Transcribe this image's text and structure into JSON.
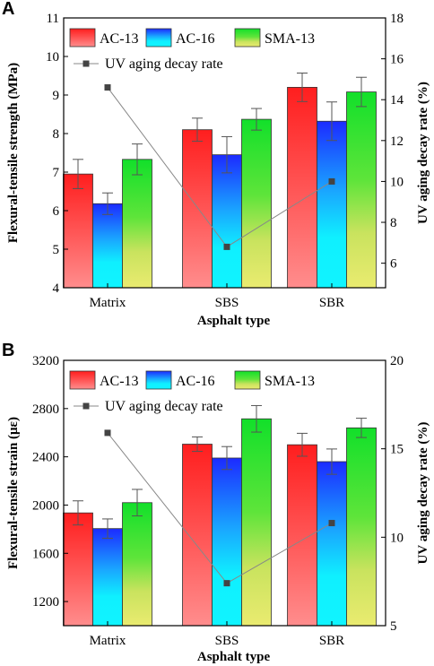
{
  "chart_data": [
    {
      "type": "bar",
      "panel": "A",
      "categories": [
        "Matrix",
        "SBS",
        "SBR"
      ],
      "xlabel": "Asphalt type",
      "ylabel": "Flexural-tensile strength (MPa)",
      "y2label": "UV aging decay rate (%)",
      "ylim": [
        4,
        11
      ],
      "yticks": [
        "4",
        "5",
        "6",
        "7",
        "8",
        "9",
        "10",
        "11"
      ],
      "y2lim": [
        4.8,
        18
      ],
      "y2ticks": [
        "6",
        "8",
        "10",
        "12",
        "14",
        "16",
        "18"
      ],
      "legend_position": "top-left",
      "series": [
        {
          "name": "AC-13",
          "color": "#ff2a2a",
          "values": [
            6.95,
            8.1,
            9.2
          ],
          "errors": [
            0.38,
            0.3,
            0.37
          ]
        },
        {
          "name": "AC-16",
          "color": "#1a3cff",
          "values": [
            6.18,
            7.45,
            8.32
          ],
          "errors": [
            0.28,
            0.47,
            0.5
          ]
        },
        {
          "name": "SMA-13",
          "color": "#22cc22",
          "values": [
            7.33,
            8.37,
            9.08
          ],
          "errors": [
            0.4,
            0.28,
            0.38
          ]
        }
      ],
      "line_series": {
        "name": "UV aging decay rate",
        "values": [
          14.6,
          6.8,
          10.0
        ]
      }
    },
    {
      "type": "bar",
      "panel": "B",
      "categories": [
        "Matrix",
        "SBS",
        "SBR"
      ],
      "xlabel": "Asphalt type",
      "ylabel": "Flexural-tensile strain (με)",
      "y2label": "UV aging decay rate (%)",
      "ylim": [
        1000,
        3200
      ],
      "yticks": [
        "1200",
        "1600",
        "2000",
        "2400",
        "2800",
        "3200"
      ],
      "y2lim": [
        5,
        20
      ],
      "y2ticks": [
        "5",
        "10",
        "15",
        "20"
      ],
      "legend_position": "top-left",
      "series": [
        {
          "name": "AC-13",
          "color": "#ff2a2a",
          "values": [
            1935,
            2505,
            2500
          ],
          "errors": [
            100,
            60,
            95
          ]
        },
        {
          "name": "AC-16",
          "color": "#1a3cff",
          "values": [
            1805,
            2390,
            2360
          ],
          "errors": [
            80,
            95,
            105
          ]
        },
        {
          "name": "SMA-13",
          "color": "#22cc22",
          "values": [
            2020,
            2715,
            2640
          ],
          "errors": [
            110,
            110,
            80
          ]
        }
      ],
      "line_series": {
        "name": "UV aging decay rate",
        "values": [
          15.9,
          7.4,
          10.8
        ]
      }
    }
  ]
}
